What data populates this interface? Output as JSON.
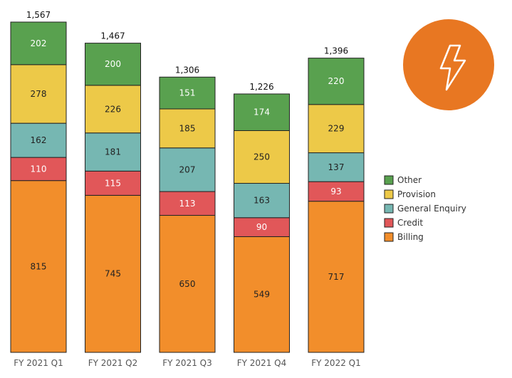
{
  "chart_data": {
    "type": "bar",
    "stacked": true,
    "categories": [
      "FY 2021 Q1",
      "FY 2021 Q2",
      "FY 2021 Q3",
      "FY 2021 Q4",
      "FY 2022 Q1"
    ],
    "totals": [
      "1,567",
      "1,467",
      "1,306",
      "1,226",
      "1,396"
    ],
    "series": [
      {
        "name": "Billing",
        "color": "#F28E2B",
        "label_color": "#222222",
        "values": [
          815,
          745,
          650,
          549,
          717
        ]
      },
      {
        "name": "Credit",
        "color": "#E15759",
        "label_color": "#ffffff",
        "values": [
          110,
          115,
          113,
          90,
          93
        ]
      },
      {
        "name": "General Enquiry",
        "color": "#76B7B2",
        "label_color": "#222222",
        "values": [
          162,
          181,
          207,
          163,
          137
        ]
      },
      {
        "name": "Provision",
        "color": "#EDC948",
        "label_color": "#222222",
        "values": [
          278,
          226,
          185,
          250,
          229
        ]
      },
      {
        "name": "Other",
        "color": "#59A14F",
        "label_color": "#ffffff",
        "values": [
          202,
          200,
          151,
          174,
          220
        ]
      }
    ],
    "legend_order": [
      "Other",
      "Provision",
      "General Enquiry",
      "Credit",
      "Billing"
    ],
    "legend_position": "right",
    "ylim": [
      0,
      1567
    ],
    "grid": false
  },
  "icon": {
    "name": "lightning-bolt-icon",
    "color": "#E87722"
  }
}
